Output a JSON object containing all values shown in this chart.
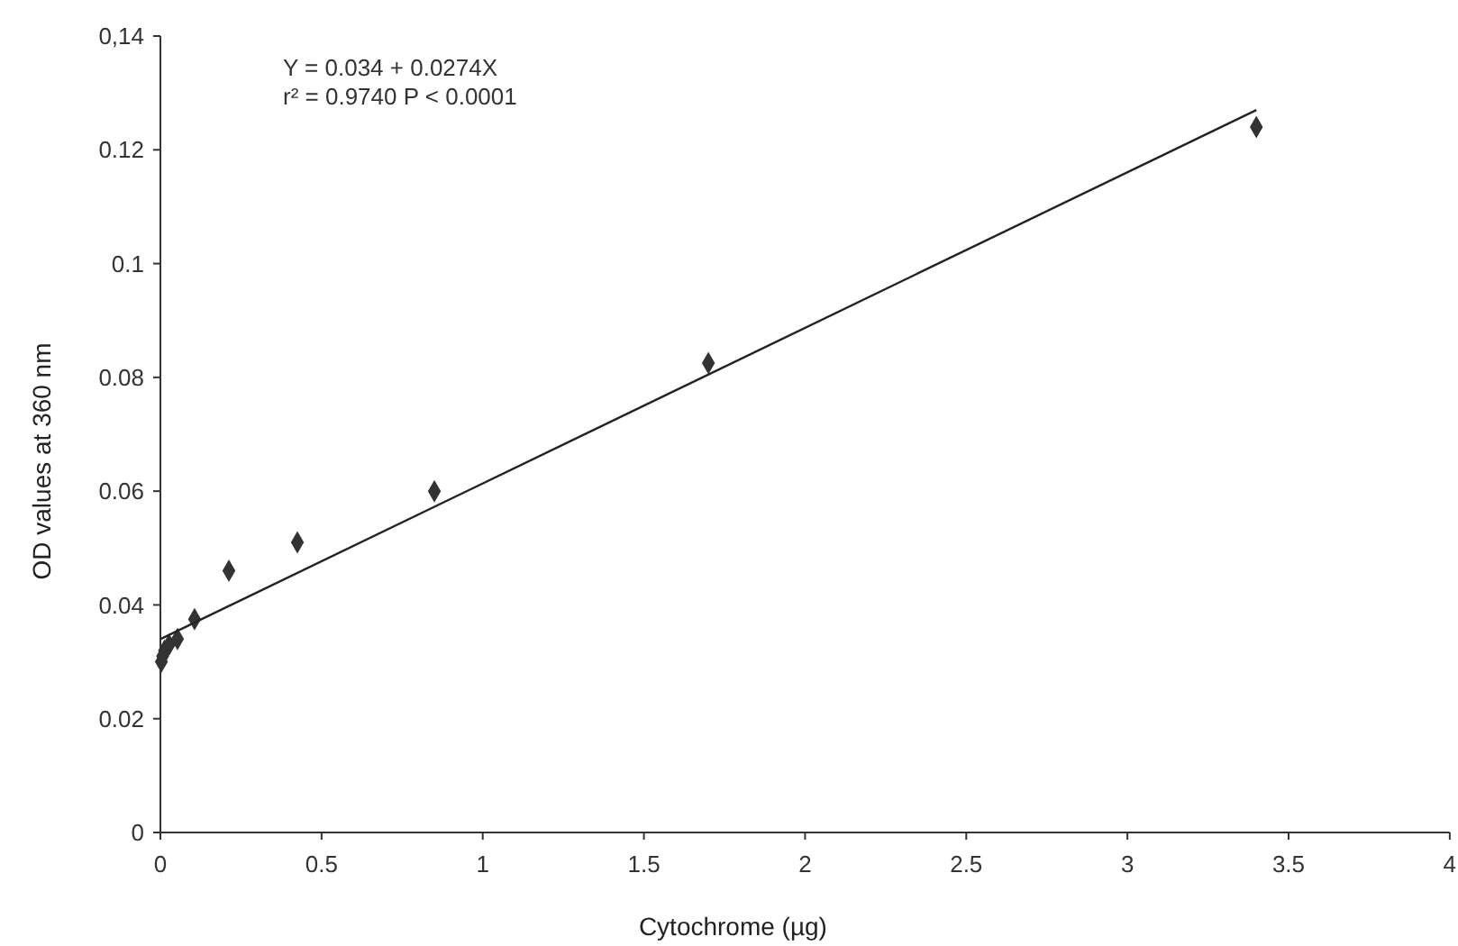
{
  "chart_data": {
    "type": "scatter",
    "xlabel": "Cytochrome (µg)",
    "ylabel": "OD values at 360 nm",
    "annotations": [
      "Y = 0.034 + 0.0274X",
      "r² =  0.9740 P < 0.0001"
    ],
    "xlim": [
      0,
      4
    ],
    "xticks": [
      0,
      0.5,
      1,
      1.5,
      2,
      2.5,
      3,
      3.5,
      4
    ],
    "ylim": [
      0,
      0.14
    ],
    "yticks": [
      0,
      0.02,
      0.04,
      0.06,
      0.08,
      0.1,
      0.12,
      {
        "value": 0.14,
        "label": "0,14"
      }
    ],
    "grid": false,
    "series": [
      {
        "color": "#333333",
        "marker": "diamond",
        "x": [
          0.003,
          0.007,
          0.013,
          0.027,
          0.053,
          0.106,
          0.2125,
          0.425,
          0.85,
          1.7,
          3.4
        ],
        "values": [
          0.03,
          0.031,
          0.032,
          0.033,
          0.034,
          0.0375,
          0.046,
          0.051,
          0.06,
          0.0825,
          0.124
        ]
      },
      {
        "type": "line",
        "color": "#222222",
        "line_style": "solid",
        "x": [
          0,
          3.4
        ],
        "values": [
          0.034,
          0.127
        ]
      }
    ]
  }
}
